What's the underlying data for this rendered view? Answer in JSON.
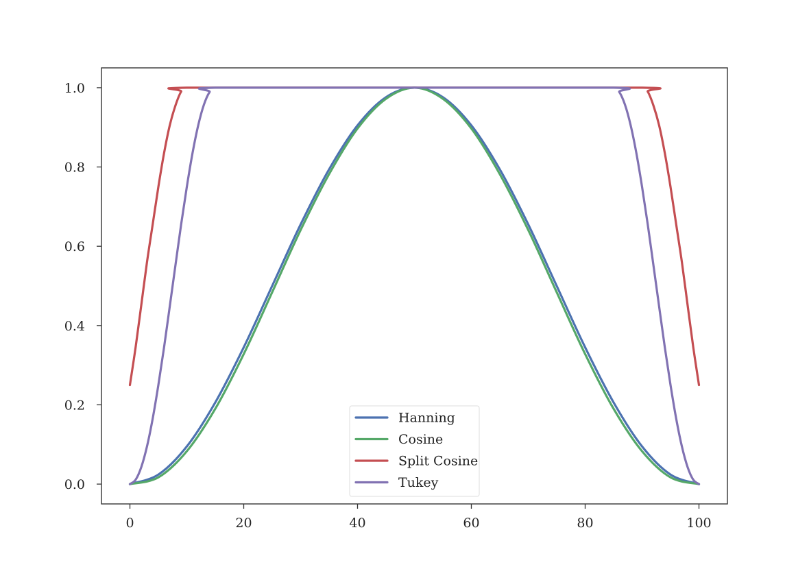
{
  "chart_data": {
    "type": "line",
    "title": "",
    "xlabel": "",
    "ylabel": "",
    "xlim": [
      -5,
      105
    ],
    "ylim": [
      -0.05,
      1.05
    ],
    "grid": false,
    "legend_position": "lower-center",
    "x_ticks": [
      0,
      20,
      40,
      60,
      80,
      100
    ],
    "x_tick_labels": [
      "0",
      "20",
      "40",
      "60",
      "80",
      "100"
    ],
    "y_ticks": [
      0.0,
      0.2,
      0.4,
      0.6,
      0.8,
      1.0
    ],
    "y_tick_labels": [
      "0.0",
      "0.2",
      "0.4",
      "0.6",
      "0.8",
      "1.0"
    ],
    "x": [
      0,
      5,
      10,
      15,
      20,
      25,
      30,
      35,
      40,
      45,
      50,
      55,
      60,
      65,
      70,
      75,
      80,
      85,
      90,
      95,
      100
    ],
    "series": [
      {
        "name": "Hanning",
        "color": "#4c72b0",
        "x": [
          0,
          5,
          10,
          15,
          20,
          25,
          30,
          35,
          40,
          45,
          50,
          55,
          60,
          65,
          70,
          75,
          80,
          85,
          90,
          95,
          100
        ],
        "values": [
          0.0,
          0.024,
          0.095,
          0.206,
          0.345,
          0.5,
          0.655,
          0.794,
          0.905,
          0.976,
          1.0,
          0.976,
          0.905,
          0.794,
          0.655,
          0.5,
          0.345,
          0.206,
          0.095,
          0.024,
          0.0
        ]
      },
      {
        "name": "Cosine",
        "color": "#55a868",
        "x": [
          0,
          5,
          10,
          15,
          20,
          25,
          30,
          35,
          40,
          45,
          50,
          55,
          60,
          65,
          70,
          75,
          80,
          85,
          90,
          95,
          100
        ],
        "values": [
          0.0,
          0.017,
          0.083,
          0.19,
          0.328,
          0.484,
          0.641,
          0.782,
          0.897,
          0.972,
          1.0,
          0.972,
          0.897,
          0.782,
          0.641,
          0.484,
          0.328,
          0.19,
          0.083,
          0.017,
          0.0
        ]
      },
      {
        "name": "Split Cosine",
        "color": "#c44e52",
        "x": [
          0,
          1,
          2,
          3,
          4,
          5,
          6,
          7,
          8,
          9,
          10,
          50,
          90,
          91,
          92,
          93,
          94,
          95,
          96,
          97,
          98,
          99,
          100
        ],
        "values": [
          0.25,
          0.345,
          0.452,
          0.56,
          0.655,
          0.75,
          0.835,
          0.905,
          0.955,
          0.99,
          1.0,
          1.0,
          1.0,
          0.99,
          0.955,
          0.905,
          0.835,
          0.75,
          0.655,
          0.56,
          0.452,
          0.345,
          0.25
        ]
      },
      {
        "name": "Tukey",
        "color": "#8172b2",
        "x": [
          0,
          1,
          2,
          3,
          4,
          5,
          6,
          7,
          8,
          9,
          10,
          11,
          12,
          13,
          14,
          15,
          50,
          85,
          86,
          87,
          88,
          89,
          90,
          91,
          92,
          93,
          94,
          95,
          96,
          97,
          98,
          99,
          100
        ],
        "values": [
          0.0,
          0.011,
          0.043,
          0.095,
          0.165,
          0.25,
          0.345,
          0.448,
          0.552,
          0.655,
          0.75,
          0.835,
          0.905,
          0.957,
          0.989,
          1.0,
          1.0,
          1.0,
          0.989,
          0.957,
          0.905,
          0.835,
          0.75,
          0.655,
          0.552,
          0.448,
          0.345,
          0.25,
          0.165,
          0.095,
          0.043,
          0.011,
          0.0
        ]
      }
    ]
  }
}
